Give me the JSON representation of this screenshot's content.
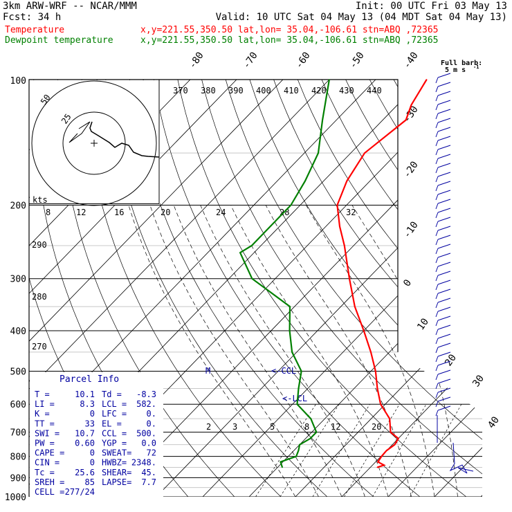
{
  "header": {
    "line1_left": "3km ARW-WRF -- NCAR/MMM",
    "line1_right": "Init: 00 UTC Fri 03 May 13",
    "line2_left": "Fcst:   34 h",
    "line2_right": "Valid: 10 UTC Sat 04 May 13 (04 MDT Sat 04 May 13)",
    "temp_label": "Temperature",
    "dew_label": "Dewpoint temperature",
    "temp_info": "x,y=221.55,350.50   lat,lon= 35.04,-106.61   stn=ABQ ,72365",
    "dew_info": "x,y=221.55,350.50   lat,lon= 35.04,-106.61   stn=ABQ ,72365",
    "barb_legend_1": "Full barb:",
    "barb_legend_2": "5 m s",
    "barb_legend_sup": "-1"
  },
  "colors": {
    "temperature": "#ff0000",
    "dewpoint": "#008000",
    "grid": "#000000",
    "hodo": "#000000",
    "barbs": "#0000a0"
  },
  "pressure_labels": [
    "100",
    "200",
    "300",
    "400",
    "500",
    "600",
    "700",
    "800",
    "900",
    "1000"
  ],
  "temp_axis_labels": [
    "-80",
    "-70",
    "-60",
    "-50",
    "-40",
    "-30",
    "-20",
    "-10",
    "0",
    "10",
    "20",
    "30",
    "40"
  ],
  "theta_labels": [
    "370",
    "380",
    "390",
    "400",
    "410",
    "420",
    "430",
    "440"
  ],
  "theta_left_labels": [
    "290",
    "280",
    "270"
  ],
  "mixing_labels": [
    "2",
    "3",
    "5",
    "8",
    "12",
    "20"
  ],
  "upper_mix_labels": [
    "8",
    "12",
    "16",
    "20",
    "24",
    "28",
    "32"
  ],
  "hodograph": {
    "unit": "kts",
    "rings": [
      "25",
      "50"
    ]
  },
  "markers": {
    "m": "M",
    "ccl": "<-CCL",
    "lcl": "<-LCL"
  },
  "parcel_info": {
    "title": "Parcel Info",
    "rows": [
      [
        "T  =",
        "10.1",
        "Td =",
        "-8.3"
      ],
      [
        "LI =",
        "8.3",
        "LCL =",
        "582."
      ],
      [
        "K  =",
        "0",
        "LFC =",
        "0."
      ],
      [
        "TT =",
        "33",
        "EL  =",
        "0."
      ],
      [
        "SWI =",
        "10.7",
        "CCL =",
        "500."
      ],
      [
        "PW  =",
        "0.60",
        "YGP =",
        "0.0"
      ],
      [
        "CAPE =",
        "0",
        "SWEAT=",
        "72"
      ],
      [
        "CIN  =",
        "0",
        "HWBZ=",
        "2348."
      ],
      [
        "Tc   =",
        "25.6",
        "SHEAR=",
        "45."
      ],
      [
        "SREH =",
        "85",
        "LAPSE=",
        "7.7"
      ],
      [
        "CELL =",
        "277/24",
        "",
        ""
      ]
    ]
  },
  "chart_data": {
    "type": "line",
    "title": "",
    "xlabel": "",
    "ylabel": "",
    "y_scale": "log-pressure (hPa)",
    "ylim": [
      1000,
      100
    ],
    "series": [
      {
        "name": "Temperature",
        "pressure": [
          850,
          840,
          825,
          800,
          775,
          750,
          725,
          700,
          650,
          600,
          550,
          500,
          450,
          400,
          350,
          300,
          250,
          225,
          200,
          175,
          150,
          125,
          115,
          100
        ],
        "t": [
          11.5,
          12.5,
          10.5,
          10.1,
          10.0,
          10.5,
          10.0,
          7.0,
          4.0,
          -1.0,
          -5.0,
          -9.0,
          -14.0,
          -20.0,
          -27.0,
          -34.0,
          -42.0,
          -47.0,
          -52.0,
          -55.0,
          -57.0,
          -55.0,
          -57.0,
          -59.0
        ]
      },
      {
        "name": "Dewpoint temperature",
        "pressure": [
          850,
          825,
          800,
          775,
          750,
          725,
          700,
          650,
          600,
          550,
          500,
          450,
          400,
          350,
          300,
          260,
          250,
          225,
          200,
          175,
          150,
          125,
          100
        ],
        "t": [
          -9.0,
          -10.5,
          -8.3,
          -9.0,
          -10.0,
          -9.0,
          -9.0,
          -13.0,
          -19.0,
          -22.0,
          -25.0,
          -31.0,
          -36.0,
          -41.0,
          -55.0,
          -63.0,
          -62.0,
          -62.0,
          -62.0,
          -64.0,
          -67.0,
          -73.0,
          -80.0
        ]
      }
    ]
  }
}
